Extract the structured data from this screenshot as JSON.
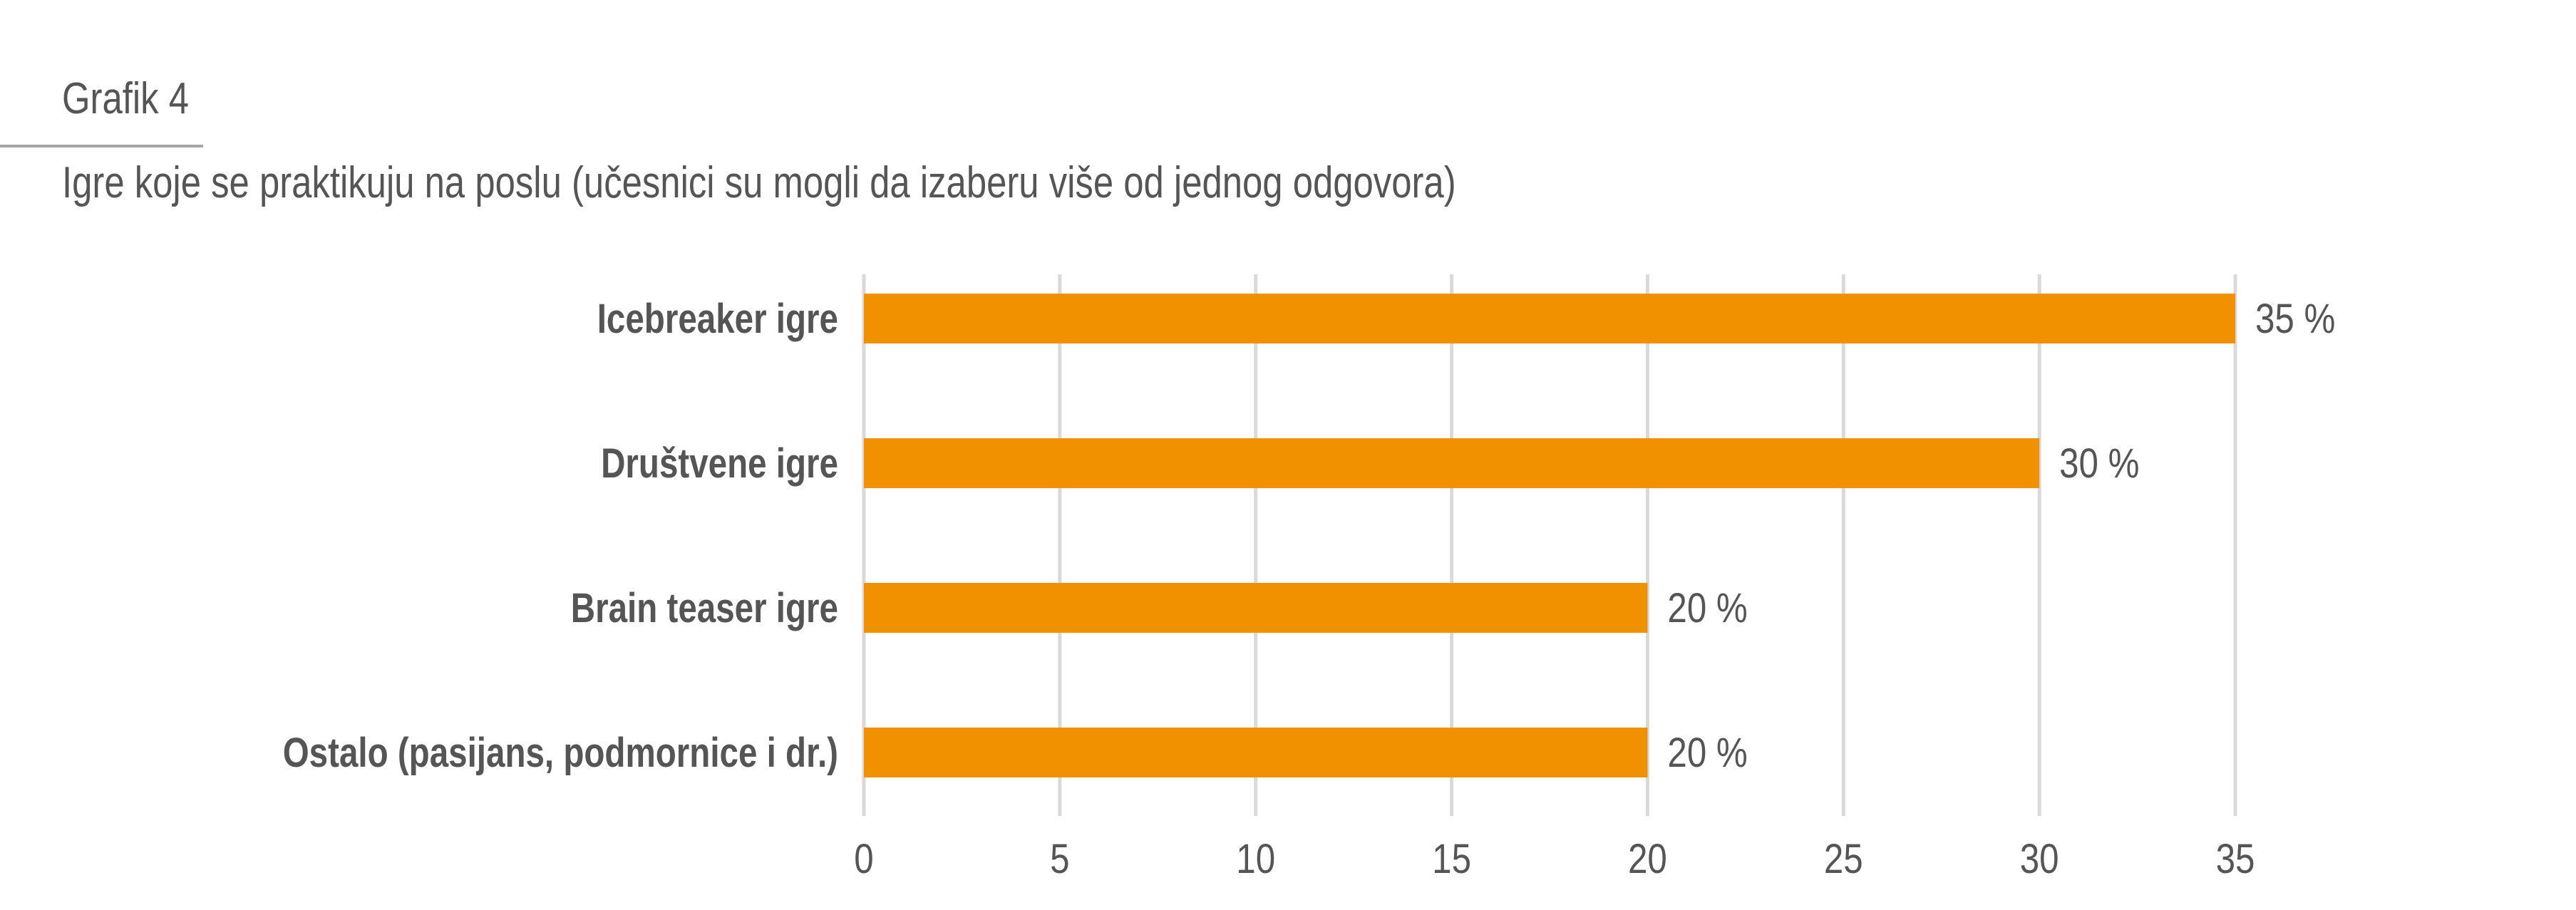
{
  "heading": "Grafik 4",
  "subtitle": "Igre koje se praktikuju na poslu (učesnici su mogli da izaberu više od jednog odgovora)",
  "colors": {
    "bar": "#f29100",
    "grid": "#d9d9d9",
    "text": "#555555",
    "rule": "#a6a6a6"
  },
  "chart_data": {
    "type": "bar",
    "orientation": "horizontal",
    "categories": [
      "Icebreaker igre",
      "Društvene igre",
      "Brain teaser igre",
      "Ostalo (pasijans, podmornice i dr.)"
    ],
    "values": [
      35,
      30,
      20,
      20
    ],
    "data_labels": [
      "35 %",
      "30 %",
      "20 %",
      "20 %"
    ],
    "xlim": [
      0,
      35
    ],
    "xticks": [
      0,
      5,
      10,
      15,
      20,
      25,
      30,
      35
    ],
    "grid": true,
    "legend": "none"
  }
}
